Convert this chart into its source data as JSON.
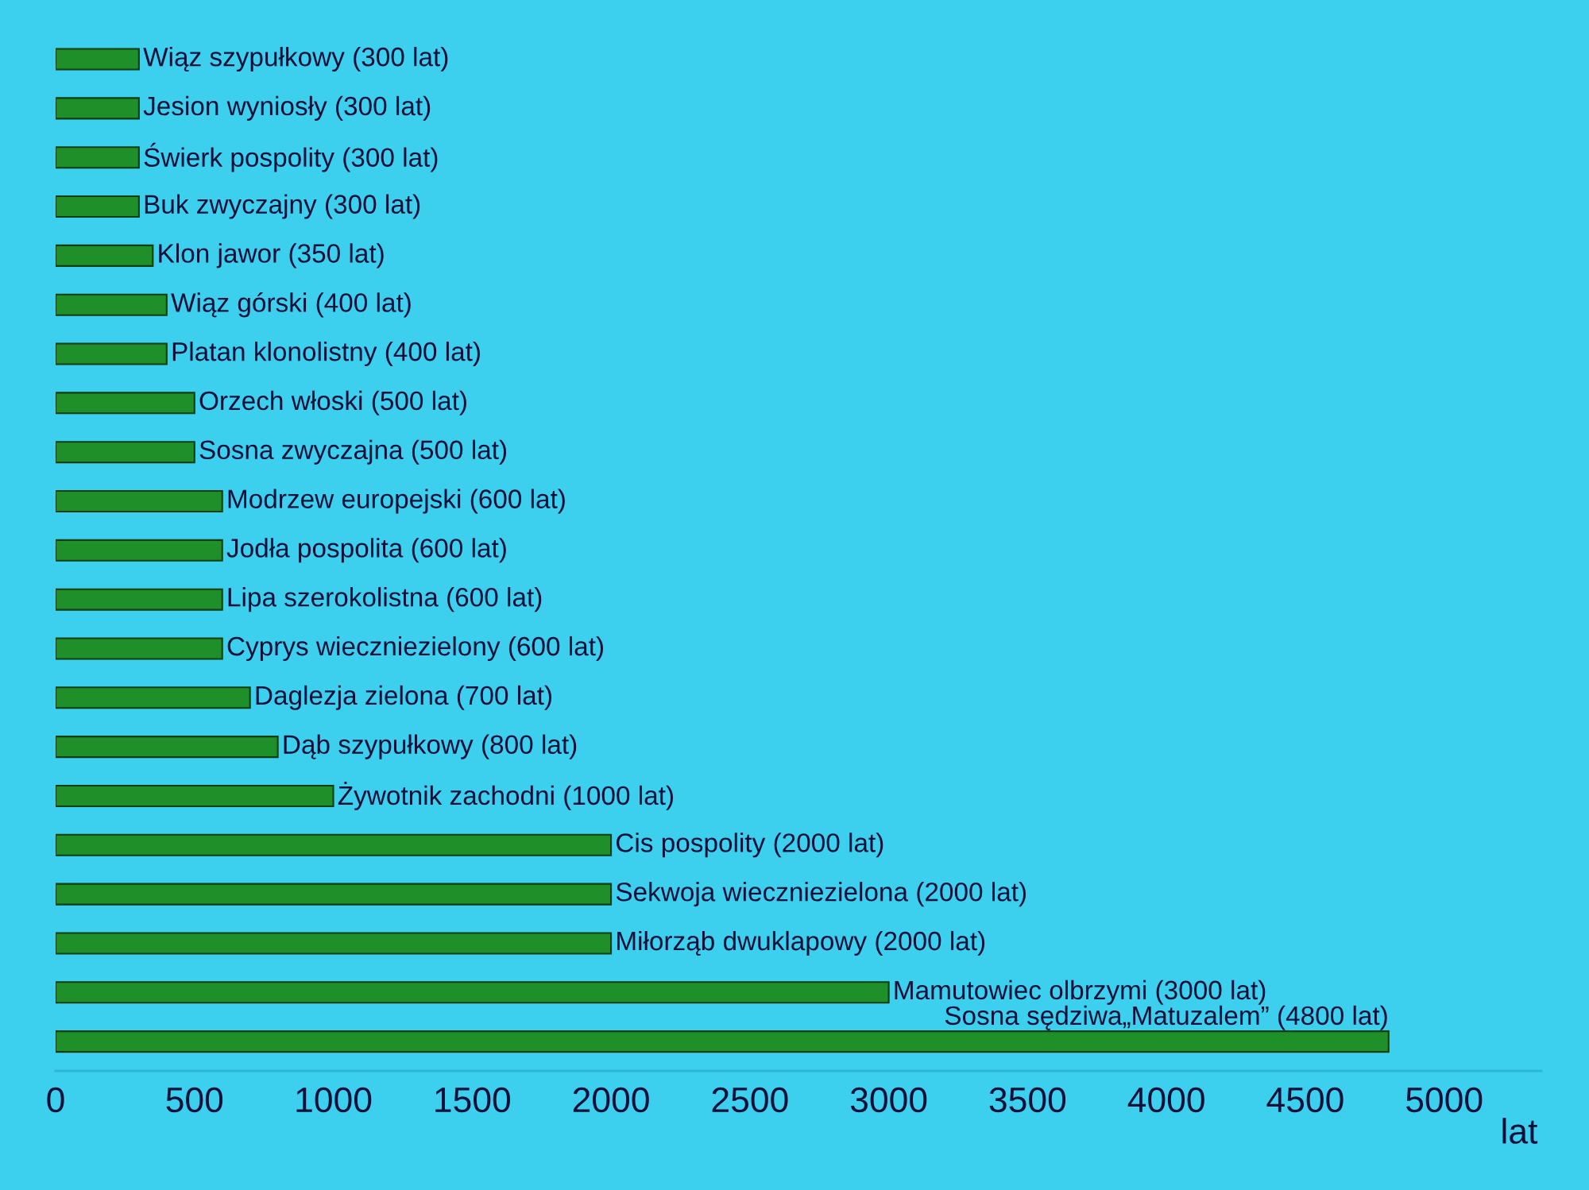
{
  "chart_data": {
    "type": "bar",
    "orientation": "horizontal",
    "xlabel": "lat",
    "categories": [
      "Wiąz szypułkowy",
      "Jesion wyniosły",
      "Świerk pospolity",
      "Buk zwyczajny",
      "Klon jawor",
      "Wiąz górski",
      "Platan klonolistny",
      "Orzech włoski",
      "Sosna zwyczajna",
      "Modrzew europejski",
      "Jodła pospolita",
      "Lipa szerokolistna",
      "Cyprys wieczniezielony",
      "Daglezja zielona",
      "Dąb szypułkowy",
      "Żywotnik zachodni",
      "Cis pospolity",
      "Sekwoja wieczniezielona",
      "Miłorząb dwuklapowy",
      "Mamutowiec olbrzymi",
      "Sosna sędziwa„Matuzalem”"
    ],
    "values": [
      300,
      300,
      300,
      300,
      350,
      400,
      400,
      500,
      500,
      600,
      600,
      600,
      600,
      700,
      800,
      1000,
      2000,
      2000,
      2000,
      3000,
      4800
    ],
    "value_labels": [
      "(300 lat)",
      "(300 lat)",
      "(300 lat)",
      "(300 lat)",
      "(350 lat)",
      "(400 lat)",
      "(400 lat)",
      "(500 lat)",
      "(500 lat)",
      "(600 lat)",
      "(600 lat)",
      "(600 lat)",
      "(600 lat)",
      "(700 lat)",
      "(800 lat)",
      "(1000 lat)",
      "(2000 lat)",
      "(2000 lat)",
      "(2000 lat)",
      "(3000 lat)",
      "(4800 lat)"
    ],
    "color": "#1f8f2a",
    "xlim": [
      0,
      5350
    ],
    "xticks": [
      0,
      500,
      1000,
      1500,
      2000,
      2500,
      3000,
      3500,
      4000,
      4500,
      5000
    ],
    "grid": false,
    "legend": false
  }
}
